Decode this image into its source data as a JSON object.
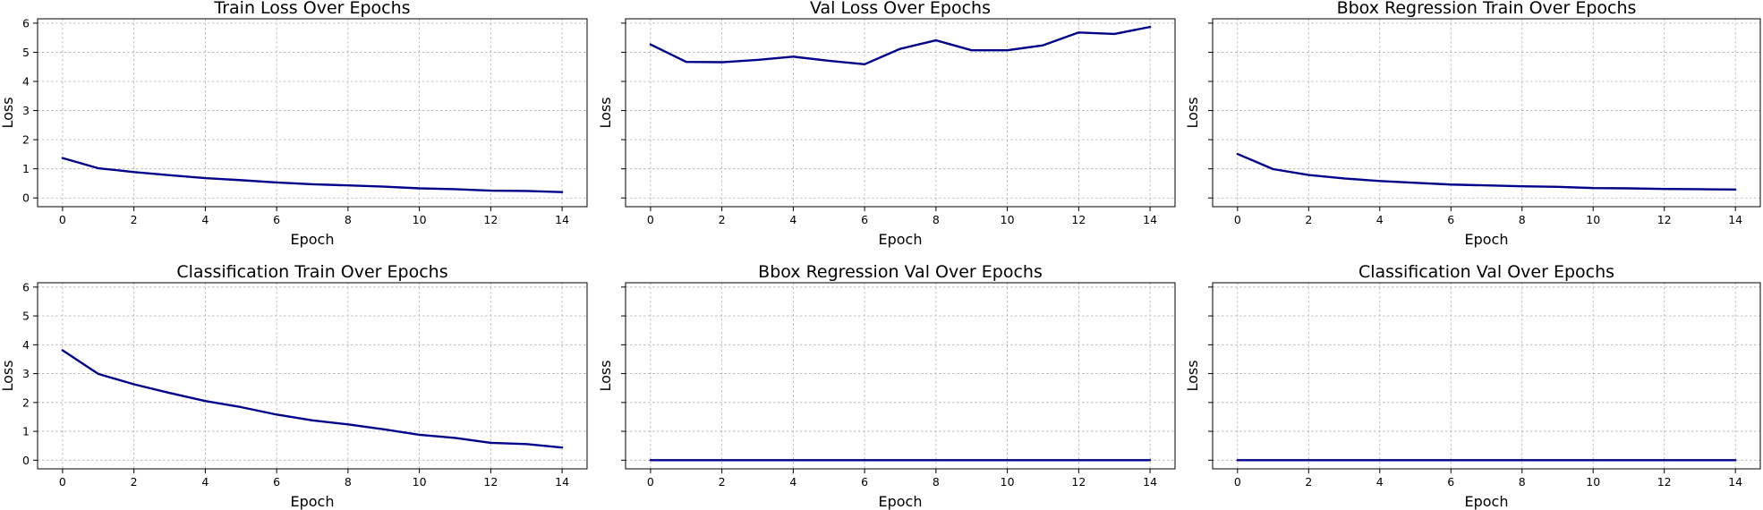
{
  "chart_data": [
    {
      "type": "line",
      "title": "Train Loss Over Epochs",
      "xlabel": "Epoch",
      "ylabel": "Loss",
      "x": [
        0,
        1,
        2,
        3,
        4,
        5,
        6,
        7,
        8,
        9,
        10,
        11,
        12,
        13,
        14
      ],
      "series": [
        {
          "values": [
            1.37,
            1.02,
            0.89,
            0.78,
            0.68,
            0.61,
            0.53,
            0.47,
            0.43,
            0.39,
            0.33,
            0.3,
            0.25,
            0.24,
            0.2
          ]
        }
      ],
      "xticks": [
        0,
        2,
        4,
        6,
        8,
        10,
        12,
        14
      ],
      "yticks": [
        0,
        1,
        2,
        3,
        4,
        5,
        6
      ],
      "show_ytick_labels": true,
      "xlim": [
        -0.7,
        14.7
      ],
      "ylim": [
        -0.3,
        6.15
      ],
      "grid": true
    },
    {
      "type": "line",
      "title": "Val Loss Over Epochs",
      "xlabel": "Epoch",
      "ylabel": "Loss",
      "x": [
        0,
        1,
        2,
        3,
        4,
        5,
        6,
        7,
        8,
        9,
        10,
        11,
        12,
        13,
        14
      ],
      "series": [
        {
          "values": [
            5.27,
            4.67,
            4.66,
            4.74,
            4.85,
            4.71,
            4.59,
            5.12,
            5.41,
            5.07,
            5.07,
            5.24,
            5.68,
            5.63,
            5.87
          ]
        }
      ],
      "xticks": [
        0,
        2,
        4,
        6,
        8,
        10,
        12,
        14
      ],
      "yticks": [
        0,
        1,
        2,
        3,
        4,
        5,
        6
      ],
      "show_ytick_labels": false,
      "xlim": [
        -0.7,
        14.7
      ],
      "ylim": [
        -0.3,
        6.15
      ],
      "grid": true
    },
    {
      "type": "line",
      "title": "Bbox Regression Train Over Epochs",
      "xlabel": "Epoch",
      "ylabel": "Loss",
      "x": [
        0,
        1,
        2,
        3,
        4,
        5,
        6,
        7,
        8,
        9,
        10,
        11,
        12,
        13,
        14
      ],
      "series": [
        {
          "values": [
            1.51,
            0.99,
            0.79,
            0.67,
            0.58,
            0.52,
            0.46,
            0.43,
            0.4,
            0.38,
            0.34,
            0.33,
            0.31,
            0.3,
            0.29
          ]
        }
      ],
      "xticks": [
        0,
        2,
        4,
        6,
        8,
        10,
        12,
        14
      ],
      "yticks": [
        0,
        1,
        2,
        3,
        4,
        5,
        6
      ],
      "show_ytick_labels": false,
      "xlim": [
        -0.7,
        14.7
      ],
      "ylim": [
        -0.3,
        6.15
      ],
      "grid": true
    },
    {
      "type": "line",
      "title": "Classification Train Over Epochs",
      "xlabel": "Epoch",
      "ylabel": "Loss",
      "x": [
        0,
        1,
        2,
        3,
        4,
        5,
        6,
        7,
        8,
        9,
        10,
        11,
        12,
        13,
        14
      ],
      "series": [
        {
          "values": [
            3.81,
            2.99,
            2.63,
            2.33,
            2.05,
            1.84,
            1.58,
            1.38,
            1.24,
            1.07,
            0.88,
            0.77,
            0.6,
            0.56,
            0.44
          ]
        }
      ],
      "xticks": [
        0,
        2,
        4,
        6,
        8,
        10,
        12,
        14
      ],
      "yticks": [
        0,
        1,
        2,
        3,
        4,
        5,
        6
      ],
      "show_ytick_labels": true,
      "xlim": [
        -0.7,
        14.7
      ],
      "ylim": [
        -0.3,
        6.15
      ],
      "grid": true
    },
    {
      "type": "line",
      "title": "Bbox Regression Val Over Epochs",
      "xlabel": "Epoch",
      "ylabel": "Loss",
      "x": [
        0,
        1,
        2,
        3,
        4,
        5,
        6,
        7,
        8,
        9,
        10,
        11,
        12,
        13,
        14
      ],
      "series": [
        {
          "values": [
            0,
            0,
            0,
            0,
            0,
            0,
            0,
            0,
            0,
            0,
            0,
            0,
            0,
            0,
            0
          ]
        }
      ],
      "xticks": [
        0,
        2,
        4,
        6,
        8,
        10,
        12,
        14
      ],
      "yticks": [
        0,
        1,
        2,
        3,
        4,
        5,
        6
      ],
      "show_ytick_labels": false,
      "xlim": [
        -0.7,
        14.7
      ],
      "ylim": [
        -0.3,
        6.15
      ],
      "grid": true
    },
    {
      "type": "line",
      "title": "Classification Val Over Epochs",
      "xlabel": "Epoch",
      "ylabel": "Loss",
      "x": [
        0,
        1,
        2,
        3,
        4,
        5,
        6,
        7,
        8,
        9,
        10,
        11,
        12,
        13,
        14
      ],
      "series": [
        {
          "values": [
            0,
            0,
            0,
            0,
            0,
            0,
            0,
            0,
            0,
            0,
            0,
            0,
            0,
            0,
            0
          ]
        }
      ],
      "xticks": [
        0,
        2,
        4,
        6,
        8,
        10,
        12,
        14
      ],
      "yticks": [
        0,
        1,
        2,
        3,
        4,
        5,
        6
      ],
      "show_ytick_labels": false,
      "xlim": [
        -0.7,
        14.7
      ],
      "ylim": [
        -0.3,
        6.15
      ],
      "grid": true
    }
  ],
  "colors": {
    "line": "#00008b",
    "grid": "#b0b0b0",
    "axes": "#000000",
    "background": "#ffffff"
  }
}
